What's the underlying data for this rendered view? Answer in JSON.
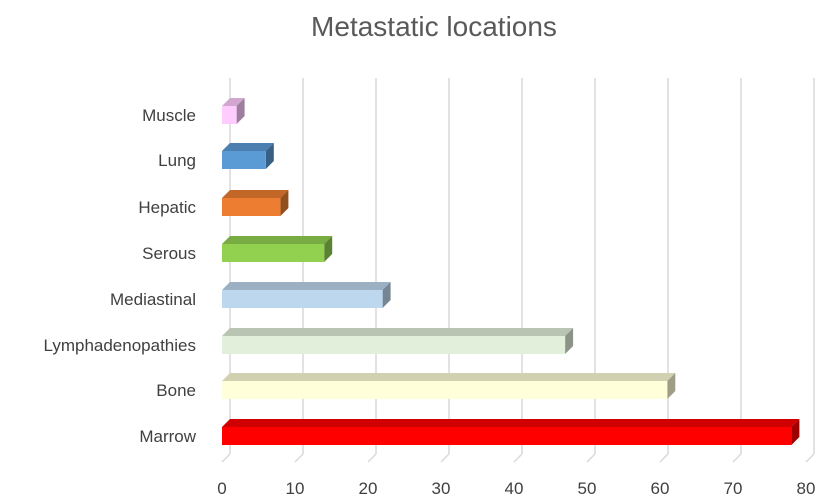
{
  "chart_data": {
    "type": "bar",
    "orientation": "horizontal",
    "style": "3d",
    "title": "Metastatic locations",
    "xlabel": "",
    "ylabel": "",
    "categories": [
      "Marrow",
      "Bone",
      "Lymphadenopathies",
      "Mediastinal",
      "Serous",
      "Hepatic",
      "Lung",
      "Muscle"
    ],
    "values": [
      78,
      61,
      47,
      22,
      14,
      8,
      6,
      2
    ],
    "colors": [
      "#ff0000",
      "#ffffd9",
      "#e2efda",
      "#bdd7ee",
      "#92d050",
      "#ed7d31",
      "#5b9bd5",
      "#ffccff"
    ],
    "xlim": [
      0,
      80
    ],
    "xticks": [
      0,
      10,
      20,
      30,
      40,
      50,
      60,
      70,
      80
    ],
    "grid": "vertical",
    "legend": "none"
  }
}
